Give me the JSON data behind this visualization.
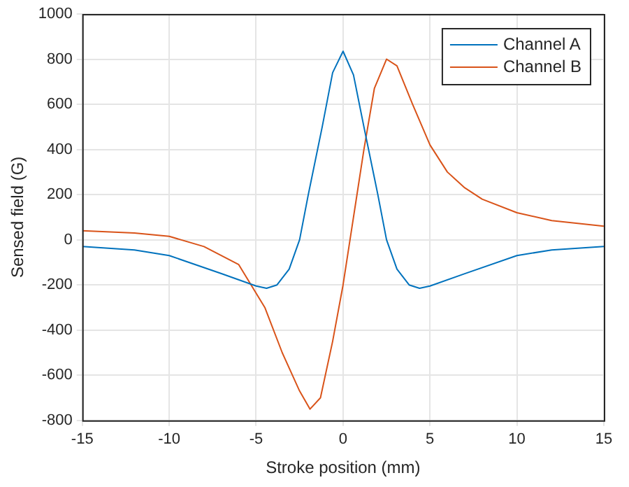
{
  "chart_data": {
    "type": "line",
    "xlabel": "Stroke position (mm)",
    "ylabel": "Sensed field (G)",
    "xlim": [
      -15,
      15
    ],
    "xticks": [
      -15,
      -10,
      -5,
      0,
      5,
      10,
      15
    ],
    "ylim": [
      -800,
      1000
    ],
    "yticks": [
      -800,
      -600,
      -400,
      -200,
      0,
      200,
      400,
      600,
      800,
      1000
    ],
    "grid": true,
    "legend": "top right",
    "marker": "none",
    "line_style": "solid",
    "series": [
      {
        "name": "Channel A",
        "color": "#0072bd",
        "x": [
          -15,
          -12,
          -10,
          -7,
          -5,
          -4.4,
          -3.8,
          -3.1,
          -2.5,
          -2,
          -1.2,
          -0.6,
          0,
          0.6,
          1.2,
          2,
          2.5,
          3.1,
          3.8,
          4.4,
          5,
          7,
          10,
          12,
          15
        ],
        "values": [
          -30,
          -45,
          -70,
          -150,
          -205,
          -215,
          -200,
          -130,
          0,
          200,
          500,
          740,
          835,
          730,
          500,
          200,
          0,
          -130,
          -200,
          -215,
          -205,
          -150,
          -70,
          -45,
          -30
        ]
      },
      {
        "name": "Channel B",
        "color": "#d95319",
        "x": [
          -15,
          -12,
          -10,
          -8,
          -6,
          -4.5,
          -3.5,
          -2.5,
          -1.9,
          -1.3,
          -0.6,
          0,
          0.6,
          1.2,
          1.8,
          2.5,
          3.1,
          4,
          5,
          6,
          7,
          8,
          10,
          12,
          15
        ],
        "values": [
          40,
          30,
          15,
          -30,
          -110,
          -300,
          -500,
          -670,
          -750,
          -700,
          -450,
          -200,
          100,
          400,
          670,
          800,
          770,
          600,
          420,
          300,
          230,
          180,
          120,
          85,
          60
        ]
      }
    ]
  }
}
